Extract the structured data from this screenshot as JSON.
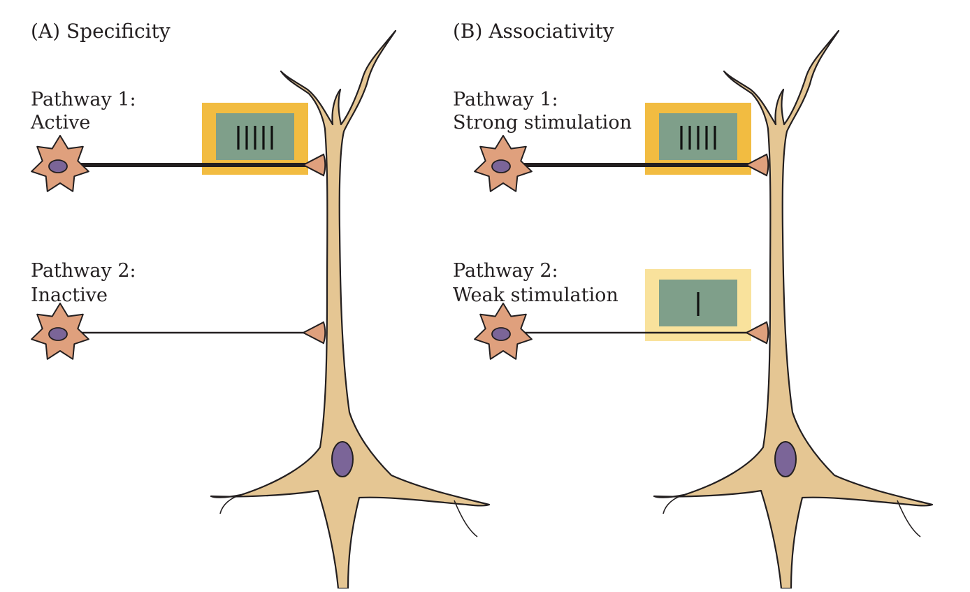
{
  "panels": [
    {
      "title": "(A)  Specificity",
      "pathway1": {
        "line1": "Pathway 1:",
        "line2": "Active",
        "stim_marks": 5
      },
      "pathway2": {
        "line1": "Pathway 2:",
        "line2": "Inactive",
        "stim_marks": 0
      }
    },
    {
      "title": "(B)  Associativity",
      "pathway1": {
        "line1": "Pathway 1:",
        "line2": "Strong stimulation",
        "stim_marks": 5
      },
      "pathway2": {
        "line1": "Pathway 2:",
        "line2": "Weak stimulation",
        "stim_marks": 1
      }
    }
  ],
  "colors": {
    "neuron_fill": "#e5c693",
    "neuron_outline": "#231f20",
    "presynaptic_fill": "#dfa07d",
    "nucleus_fill": "#7b6598",
    "strong_frame": "#f2bc41",
    "weak_frame": "#f9e29c",
    "recorder_screen": "#7f9f8a"
  }
}
